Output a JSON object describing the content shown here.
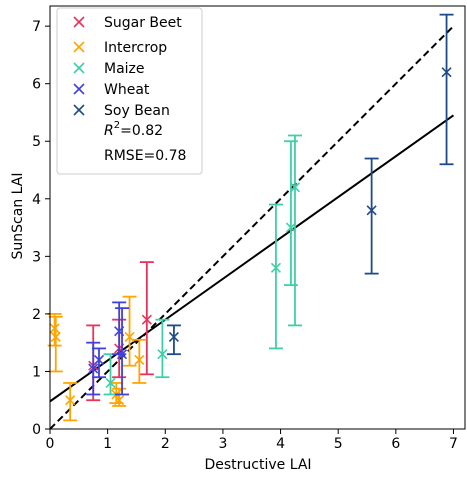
{
  "chart_data": {
    "type": "scatter",
    "title": "",
    "xlabel": "Destructive LAI",
    "ylabel": "SunScan LAI",
    "xlim": [
      0,
      7.2
    ],
    "ylim": [
      0,
      7.35
    ],
    "xticks": [
      0,
      1,
      2,
      3,
      4,
      5,
      6,
      7
    ],
    "yticks": [
      0,
      1,
      2,
      3,
      4,
      5,
      6,
      7
    ],
    "grid": false,
    "legend_position": "top-left",
    "series": [
      {
        "name": "Sugar Beet",
        "color": "#e8325a",
        "marker": "x",
        "points": [
          {
            "x": 0.75,
            "y": 1.1,
            "ylo": 0.5,
            "yhi": 1.8
          },
          {
            "x": 1.2,
            "y": 1.4,
            "ylo": 0.9,
            "yhi": 1.9
          },
          {
            "x": 1.68,
            "y": 1.9,
            "ylo": 0.95,
            "yhi": 2.9
          }
        ]
      },
      {
        "name": "Intercrop",
        "color": "#ffa500",
        "marker": "x",
        "points": [
          {
            "x": 0.08,
            "y": 1.75,
            "ylo": 1.45,
            "yhi": 2.0
          },
          {
            "x": 0.1,
            "y": 1.6,
            "ylo": 1.0,
            "yhi": 1.95
          },
          {
            "x": 0.35,
            "y": 0.5,
            "ylo": 0.15,
            "yhi": 0.8
          },
          {
            "x": 1.15,
            "y": 0.6,
            "ylo": 0.45,
            "yhi": 0.8
          },
          {
            "x": 1.2,
            "y": 0.5,
            "ylo": 0.4,
            "yhi": 0.7
          },
          {
            "x": 1.38,
            "y": 1.6,
            "ylo": 1.1,
            "yhi": 2.3
          },
          {
            "x": 1.55,
            "y": 1.2,
            "ylo": 0.8,
            "yhi": 1.55
          }
        ]
      },
      {
        "name": "Maize",
        "color": "#3ecfa8",
        "marker": "x",
        "points": [
          {
            "x": 1.05,
            "y": 0.8,
            "ylo": 0.6,
            "yhi": 1.3
          },
          {
            "x": 1.95,
            "y": 1.3,
            "ylo": 0.9,
            "yhi": 1.9
          },
          {
            "x": 3.92,
            "y": 2.8,
            "ylo": 1.4,
            "yhi": 3.9
          },
          {
            "x": 4.18,
            "y": 3.5,
            "ylo": 2.5,
            "yhi": 5.0
          },
          {
            "x": 4.25,
            "y": 4.2,
            "ylo": 1.8,
            "yhi": 5.1
          }
        ]
      },
      {
        "name": "Wheat",
        "color": "#4040dd",
        "marker": "x",
        "points": [
          {
            "x": 0.75,
            "y": 1.05,
            "ylo": 0.6,
            "yhi": 1.5
          },
          {
            "x": 0.85,
            "y": 1.2,
            "ylo": 0.9,
            "yhi": 1.4
          },
          {
            "x": 1.2,
            "y": 1.7,
            "ylo": 1.3,
            "yhi": 2.2
          },
          {
            "x": 1.25,
            "y": 1.3,
            "ylo": 0.6,
            "yhi": 2.1
          }
        ]
      },
      {
        "name": "Soy Bean",
        "color": "#1f4a8a",
        "marker": "x",
        "points": [
          {
            "x": 2.15,
            "y": 1.6,
            "ylo": 1.3,
            "yhi": 1.8
          },
          {
            "x": 5.58,
            "y": 3.8,
            "ylo": 2.7,
            "yhi": 4.7
          },
          {
            "x": 6.88,
            "y": 6.2,
            "ylo": 4.6,
            "yhi": 7.2
          }
        ]
      }
    ],
    "lines": [
      {
        "kind": "one-to-one",
        "style": "dashed",
        "color": "#000000",
        "slope": 1,
        "intercept": 0,
        "x_range": [
          0,
          7
        ]
      },
      {
        "kind": "regression",
        "style": "solid",
        "color": "#000000",
        "slope": 0.71,
        "intercept": 0.48,
        "x_range": [
          0,
          7
        ]
      }
    ],
    "stats": {
      "r2_prefix": "R",
      "r2_sup": "2",
      "r2_value": "=0.82",
      "rmse": "RMSE=0.78"
    }
  }
}
